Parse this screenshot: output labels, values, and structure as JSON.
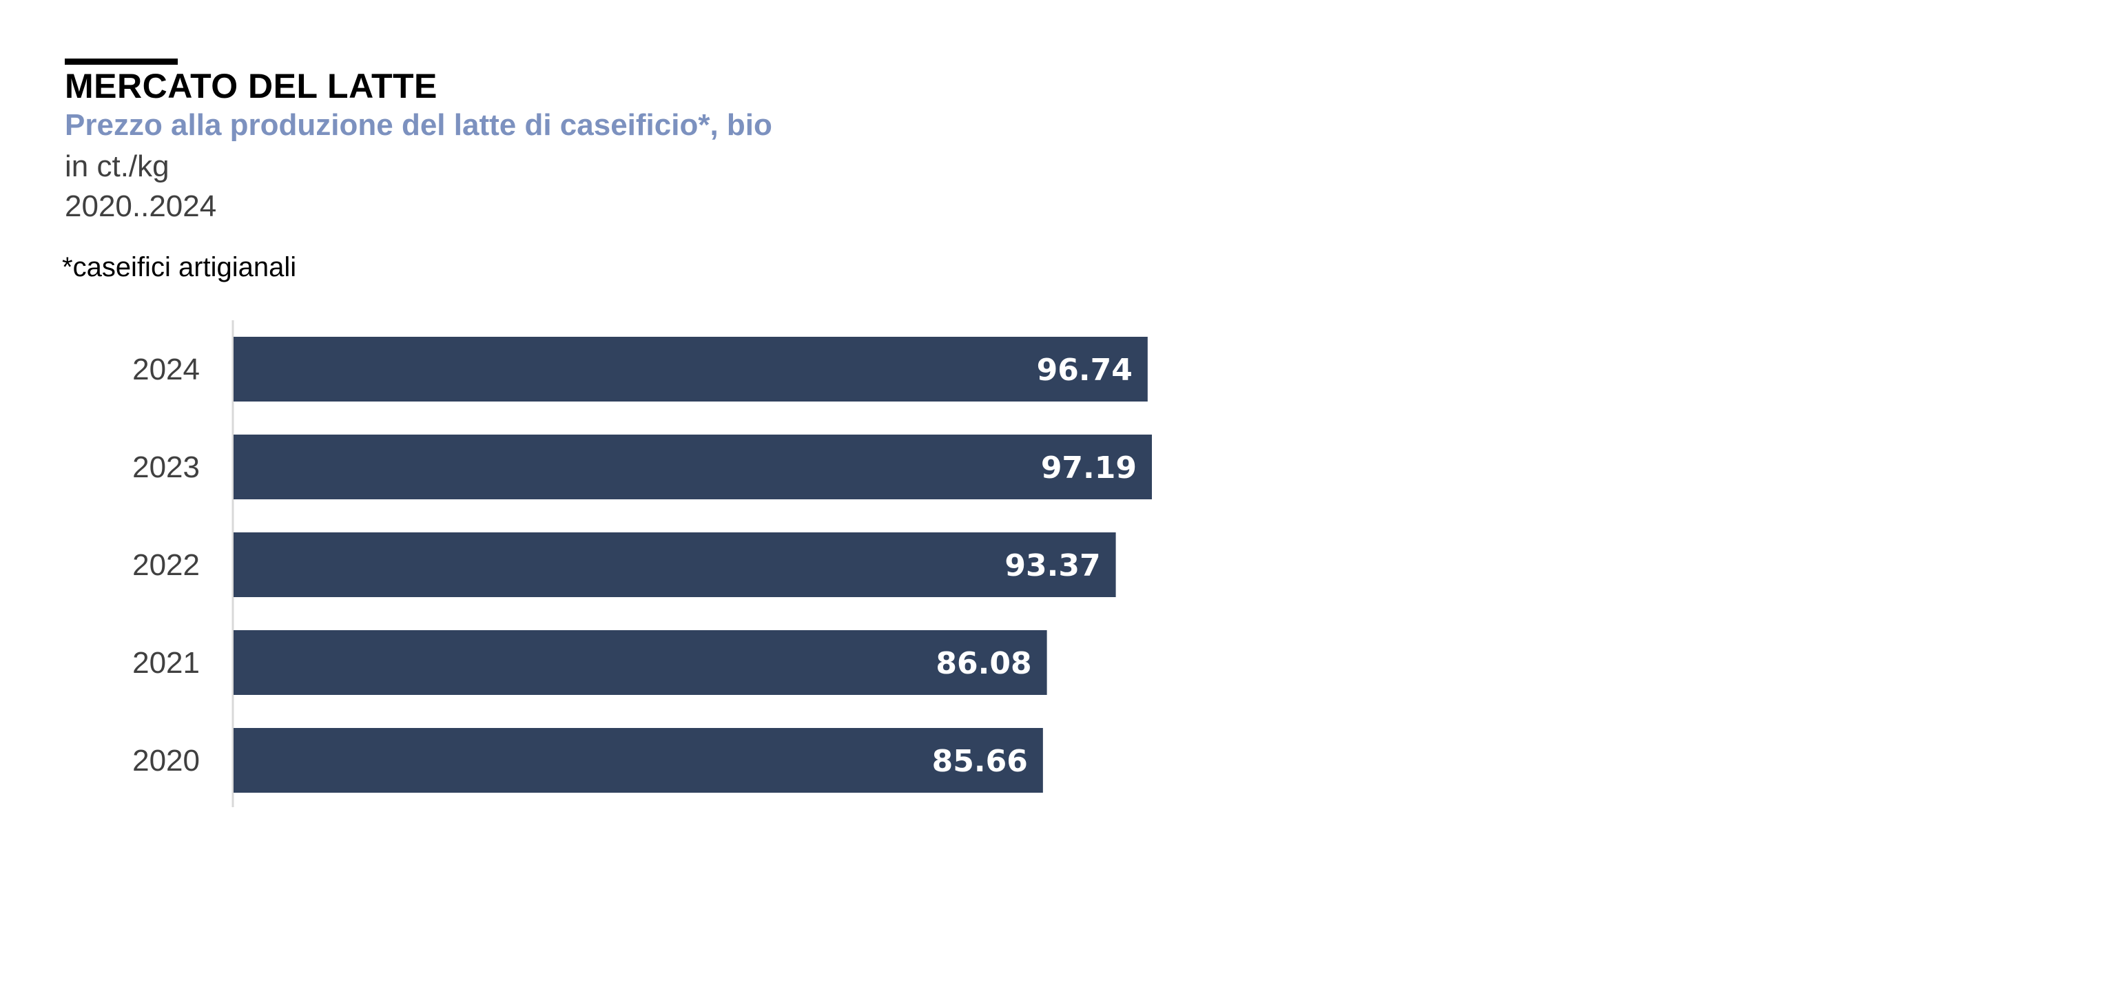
{
  "header": {
    "title": "MERCATO DEL LATTE",
    "subtitle": "Prezzo alla produzione del latte di caseificio*, bio",
    "unit": "in ct./kg",
    "period": "2020..2024",
    "footnote": "*caseifici artigianali"
  },
  "colors": {
    "bar": "#31425e",
    "subtitle": "#7c91bf",
    "axis": "#d9d9d9",
    "value_label": "#ffffff"
  },
  "chart_data": {
    "type": "bar",
    "orientation": "horizontal",
    "title": "Prezzo alla produzione del latte di caseificio*, bio",
    "categories": [
      "2024",
      "2023",
      "2022",
      "2021",
      "2020"
    ],
    "values": [
      96.74,
      97.19,
      93.37,
      86.08,
      85.66
    ],
    "value_labels": [
      "96.74",
      "97.19",
      "93.37",
      "86.08",
      "85.66"
    ],
    "xlim": [
      0,
      97.19
    ],
    "xlabel": "",
    "ylabel": "",
    "grid": false,
    "legend": "none",
    "data_labels": "inside-end"
  }
}
